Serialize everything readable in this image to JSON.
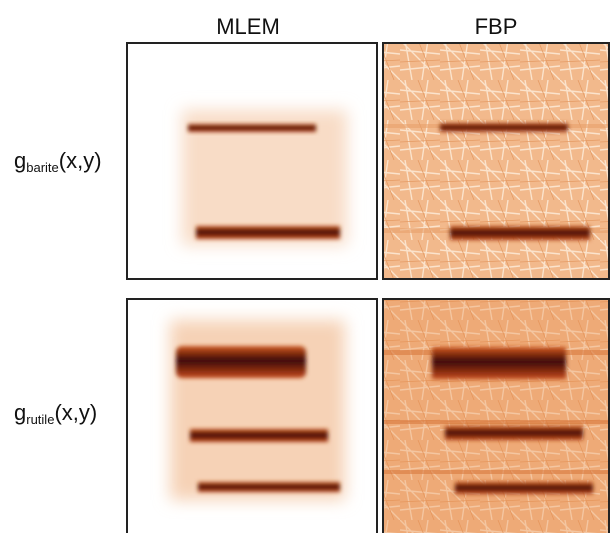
{
  "columns": [
    "MLEM",
    "FBP"
  ],
  "rows": [
    {
      "label": {
        "base": "g",
        "sub": "barite",
        "args": "(x,y)"
      }
    },
    {
      "label": {
        "base": "g",
        "sub": "rutile",
        "args": "(x,y)"
      }
    }
  ]
}
